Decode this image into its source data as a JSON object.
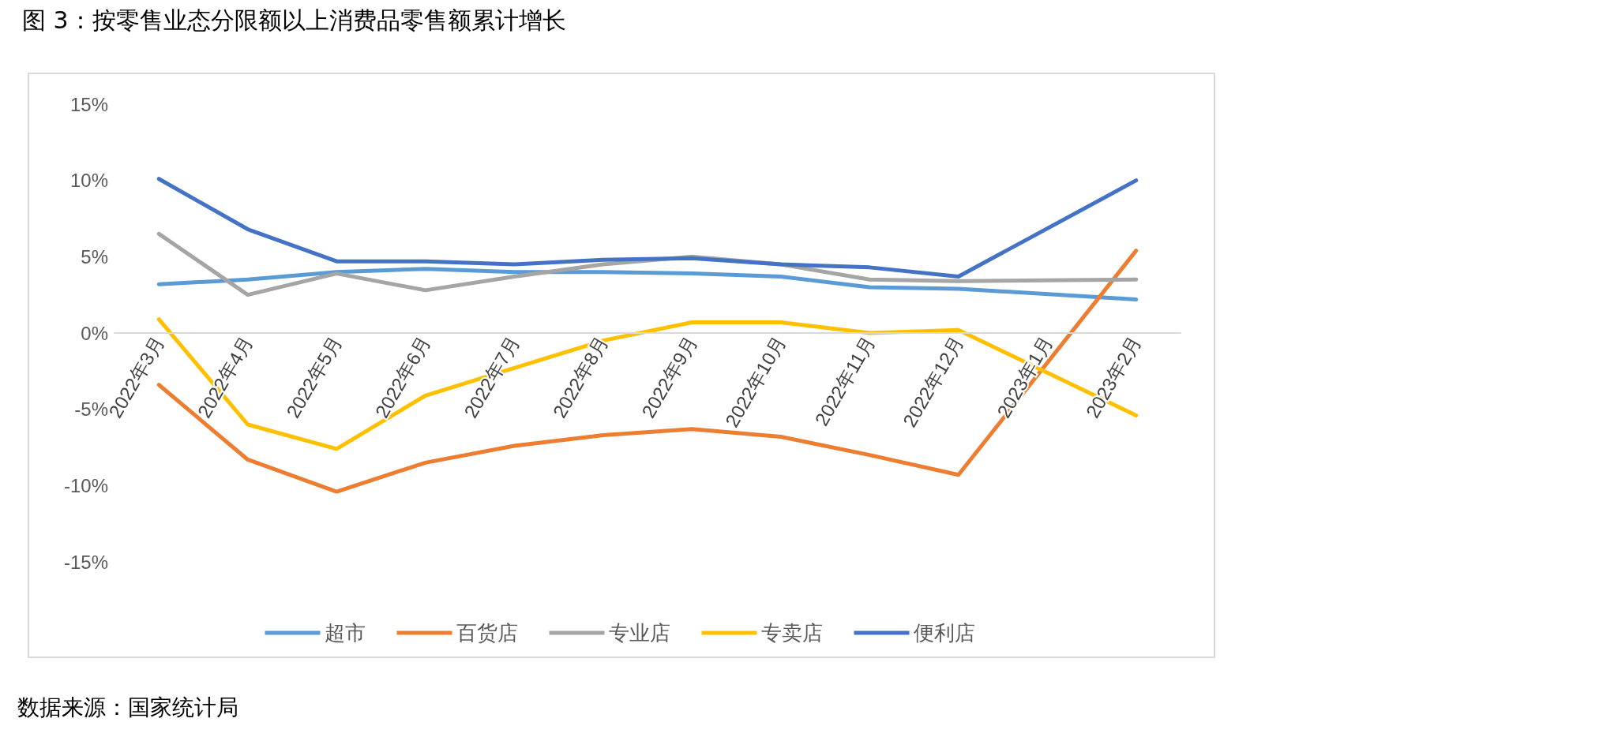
{
  "chart_data": {
    "type": "line",
    "title": "图 3：按零售业态分限额以上消费品零售额累计增长",
    "annotations": [
      "数据来源：国家统计局"
    ],
    "categories": [
      "2022年3月",
      "2022年4月",
      "2022年5月",
      "2022年6月",
      "2022年7月",
      "2022年8月",
      "2022年9月",
      "2022年10月",
      "2022年11月",
      "2022年12月",
      "2023年1月",
      "2023年2月"
    ],
    "series": [
      {
        "name": "超市",
        "color": "#5b9bd5",
        "values": [
          3.2,
          3.5,
          4.0,
          4.2,
          4.0,
          4.0,
          3.9,
          3.7,
          3.0,
          2.9,
          null,
          2.2
        ]
      },
      {
        "name": "百货店",
        "color": "#ed7d31",
        "values": [
          -3.4,
          -8.3,
          -10.4,
          -8.5,
          -7.4,
          -6.7,
          -6.3,
          -6.8,
          -8.0,
          -9.3,
          null,
          5.4
        ]
      },
      {
        "name": "专业店",
        "color": "#a5a5a5",
        "values": [
          6.5,
          2.5,
          3.9,
          2.8,
          3.7,
          4.5,
          5.0,
          4.5,
          3.5,
          3.4,
          null,
          3.5
        ]
      },
      {
        "name": "专卖店",
        "color": "#ffc000",
        "values": [
          0.9,
          -6.0,
          -7.6,
          -4.1,
          -2.3,
          -0.5,
          0.7,
          0.7,
          0.0,
          0.2,
          null,
          -5.4
        ]
      },
      {
        "name": "便利店",
        "color": "#4472c4",
        "values": [
          10.1,
          6.8,
          4.7,
          4.7,
          4.5,
          4.8,
          4.9,
          4.5,
          4.3,
          3.7,
          null,
          10.0
        ]
      }
    ],
    "ylim": [
      -15,
      15
    ],
    "yticks": [
      {
        "value": -15,
        "label": "-15%"
      },
      {
        "value": -10,
        "label": "-10%"
      },
      {
        "value": -5,
        "label": "-5%"
      },
      {
        "value": 0,
        "label": "0%"
      },
      {
        "value": 5,
        "label": "5%"
      },
      {
        "value": 10,
        "label": "10%"
      },
      {
        "value": 15,
        "label": "15%"
      }
    ],
    "grid": false,
    "legend": "bottom",
    "marker": "none",
    "line_style": "solid"
  }
}
